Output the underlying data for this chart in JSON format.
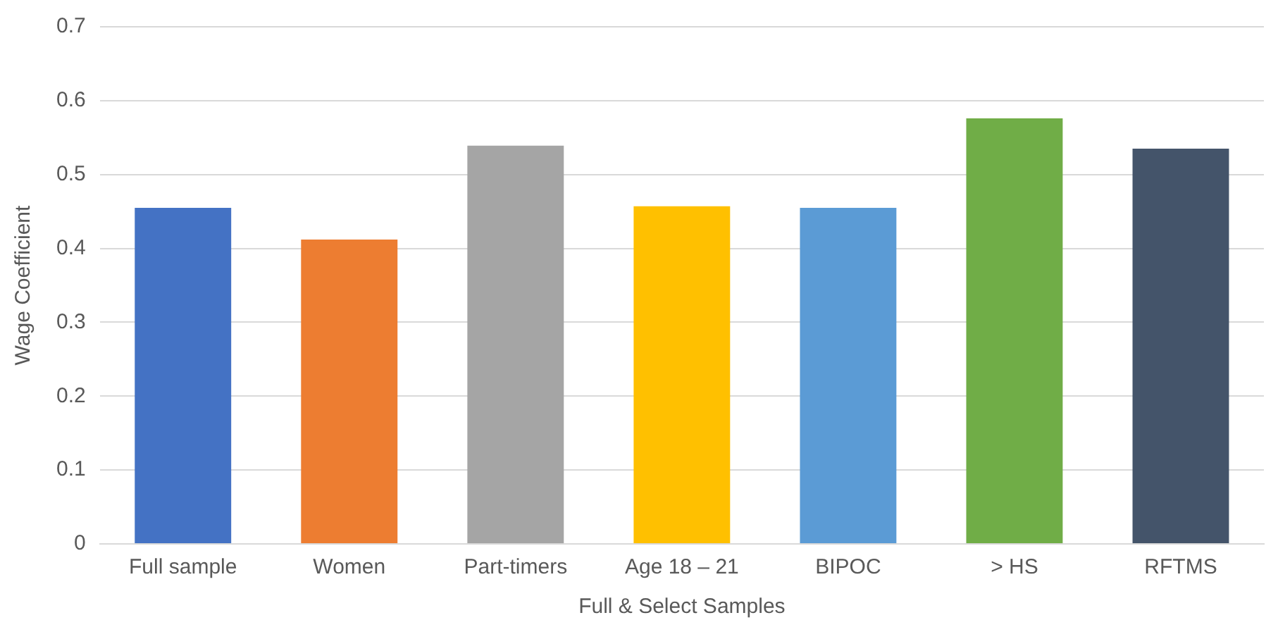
{
  "chart_data": {
    "type": "bar",
    "xlabel": "Full & Select Samples",
    "ylabel": "Wage Coefficient",
    "categories": [
      "Full sample",
      "Women",
      "Part-timers",
      "Age 18 – 21",
      "BIPOC",
      "> HS",
      "RFTMS"
    ],
    "values": [
      0.455,
      0.412,
      0.539,
      0.457,
      0.455,
      0.576,
      0.535
    ],
    "colors": [
      "#4472c4",
      "#ed7d31",
      "#a5a5a5",
      "#ffc000",
      "#5b9bd5",
      "#70ad47",
      "#44546a"
    ],
    "ylim": [
      0,
      0.7
    ],
    "yticks": [
      0,
      0.1,
      0.2,
      0.3,
      0.4,
      0.5,
      0.6,
      0.7
    ],
    "grid": "y",
    "legend": false
  }
}
